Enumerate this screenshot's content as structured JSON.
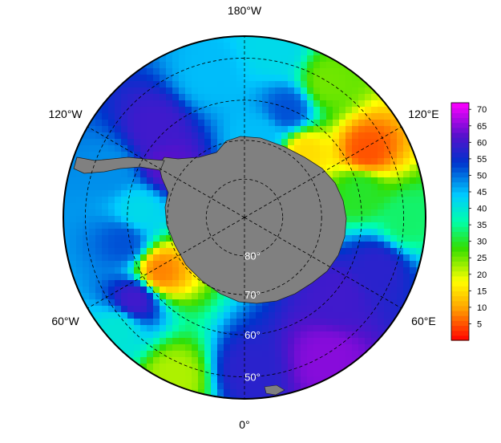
{
  "map": {
    "projection": "south-polar-stereographic",
    "outer_latitude": -45,
    "longitude_labels": [
      {
        "lon": 0,
        "text": "0°"
      },
      {
        "lon": 60,
        "text": "60°E"
      },
      {
        "lon": 120,
        "text": "120°E"
      },
      {
        "lon": 180,
        "text": "180°W"
      },
      {
        "lon": -120,
        "text": "120°W"
      },
      {
        "lon": -60,
        "text": "60°W"
      }
    ],
    "latitude_labels": [
      {
        "lat": -80,
        "text": "80°"
      },
      {
        "lat": -70,
        "text": "70°"
      },
      {
        "lat": -60,
        "text": "60°"
      },
      {
        "lat": -50,
        "text": "50°"
      }
    ],
    "land_color": "#808080",
    "graticule_color": "#000000"
  },
  "colorbar": {
    "min": 0,
    "max": 72,
    "ticks": [
      {
        "value": 5,
        "label": "5"
      },
      {
        "value": 10,
        "label": "10"
      },
      {
        "value": 15,
        "label": "15"
      },
      {
        "value": 20,
        "label": "20"
      },
      {
        "value": 25,
        "label": "25"
      },
      {
        "value": 30,
        "label": "30"
      },
      {
        "value": 35,
        "label": "35"
      },
      {
        "value": 40,
        "label": "40"
      },
      {
        "value": 45,
        "label": "45"
      },
      {
        "value": 50,
        "label": "50"
      },
      {
        "value": 55,
        "label": "55"
      },
      {
        "value": 60,
        "label": "60"
      },
      {
        "value": 65,
        "label": "65"
      },
      {
        "value": 70,
        "label": "70"
      }
    ],
    "stops": [
      {
        "value": 0,
        "color": "#ff0000"
      },
      {
        "value": 10,
        "color": "#ffa500"
      },
      {
        "value": 18,
        "color": "#ffff00"
      },
      {
        "value": 28,
        "color": "#33dd00"
      },
      {
        "value": 36,
        "color": "#00ffaa"
      },
      {
        "value": 44,
        "color": "#00ccff"
      },
      {
        "value": 54,
        "color": "#0033cc"
      },
      {
        "value": 62,
        "color": "#5511cc"
      },
      {
        "value": 72,
        "color": "#ff00ff"
      }
    ]
  },
  "field_regions": [
    {
      "lat": -50,
      "lon": 30,
      "value": 65
    },
    {
      "lat": -52,
      "lon": 0,
      "value": 58
    },
    {
      "lat": -47,
      "lon": -25,
      "value": 22
    },
    {
      "lat": -48,
      "lon": -50,
      "value": 40
    },
    {
      "lat": -55,
      "lon": -55,
      "value": 60
    },
    {
      "lat": -58,
      "lon": -80,
      "value": 52
    },
    {
      "lat": -62,
      "lon": -95,
      "value": 42
    },
    {
      "lat": -64,
      "lon": -60,
      "value": 8
    },
    {
      "lat": -65,
      "lon": -125,
      "value": 62
    },
    {
      "lat": -57,
      "lon": -135,
      "value": 60
    },
    {
      "lat": -52,
      "lon": -165,
      "value": 45
    },
    {
      "lat": -47,
      "lon": 170,
      "value": 42
    },
    {
      "lat": -50,
      "lon": 150,
      "value": 25
    },
    {
      "lat": -55,
      "lon": 120,
      "value": 5
    },
    {
      "lat": -60,
      "lon": 105,
      "value": 30
    },
    {
      "lat": -50,
      "lon": 90,
      "value": 33
    },
    {
      "lat": -55,
      "lon": 70,
      "value": 58
    },
    {
      "lat": -60,
      "lon": 50,
      "value": 60
    },
    {
      "lat": -60,
      "lon": 160,
      "value": 52
    },
    {
      "lat": -68,
      "lon": 170,
      "value": 45
    },
    {
      "lat": -67,
      "lon": 140,
      "value": 15
    },
    {
      "lat": -53,
      "lon": -110,
      "value": 48
    }
  ]
}
